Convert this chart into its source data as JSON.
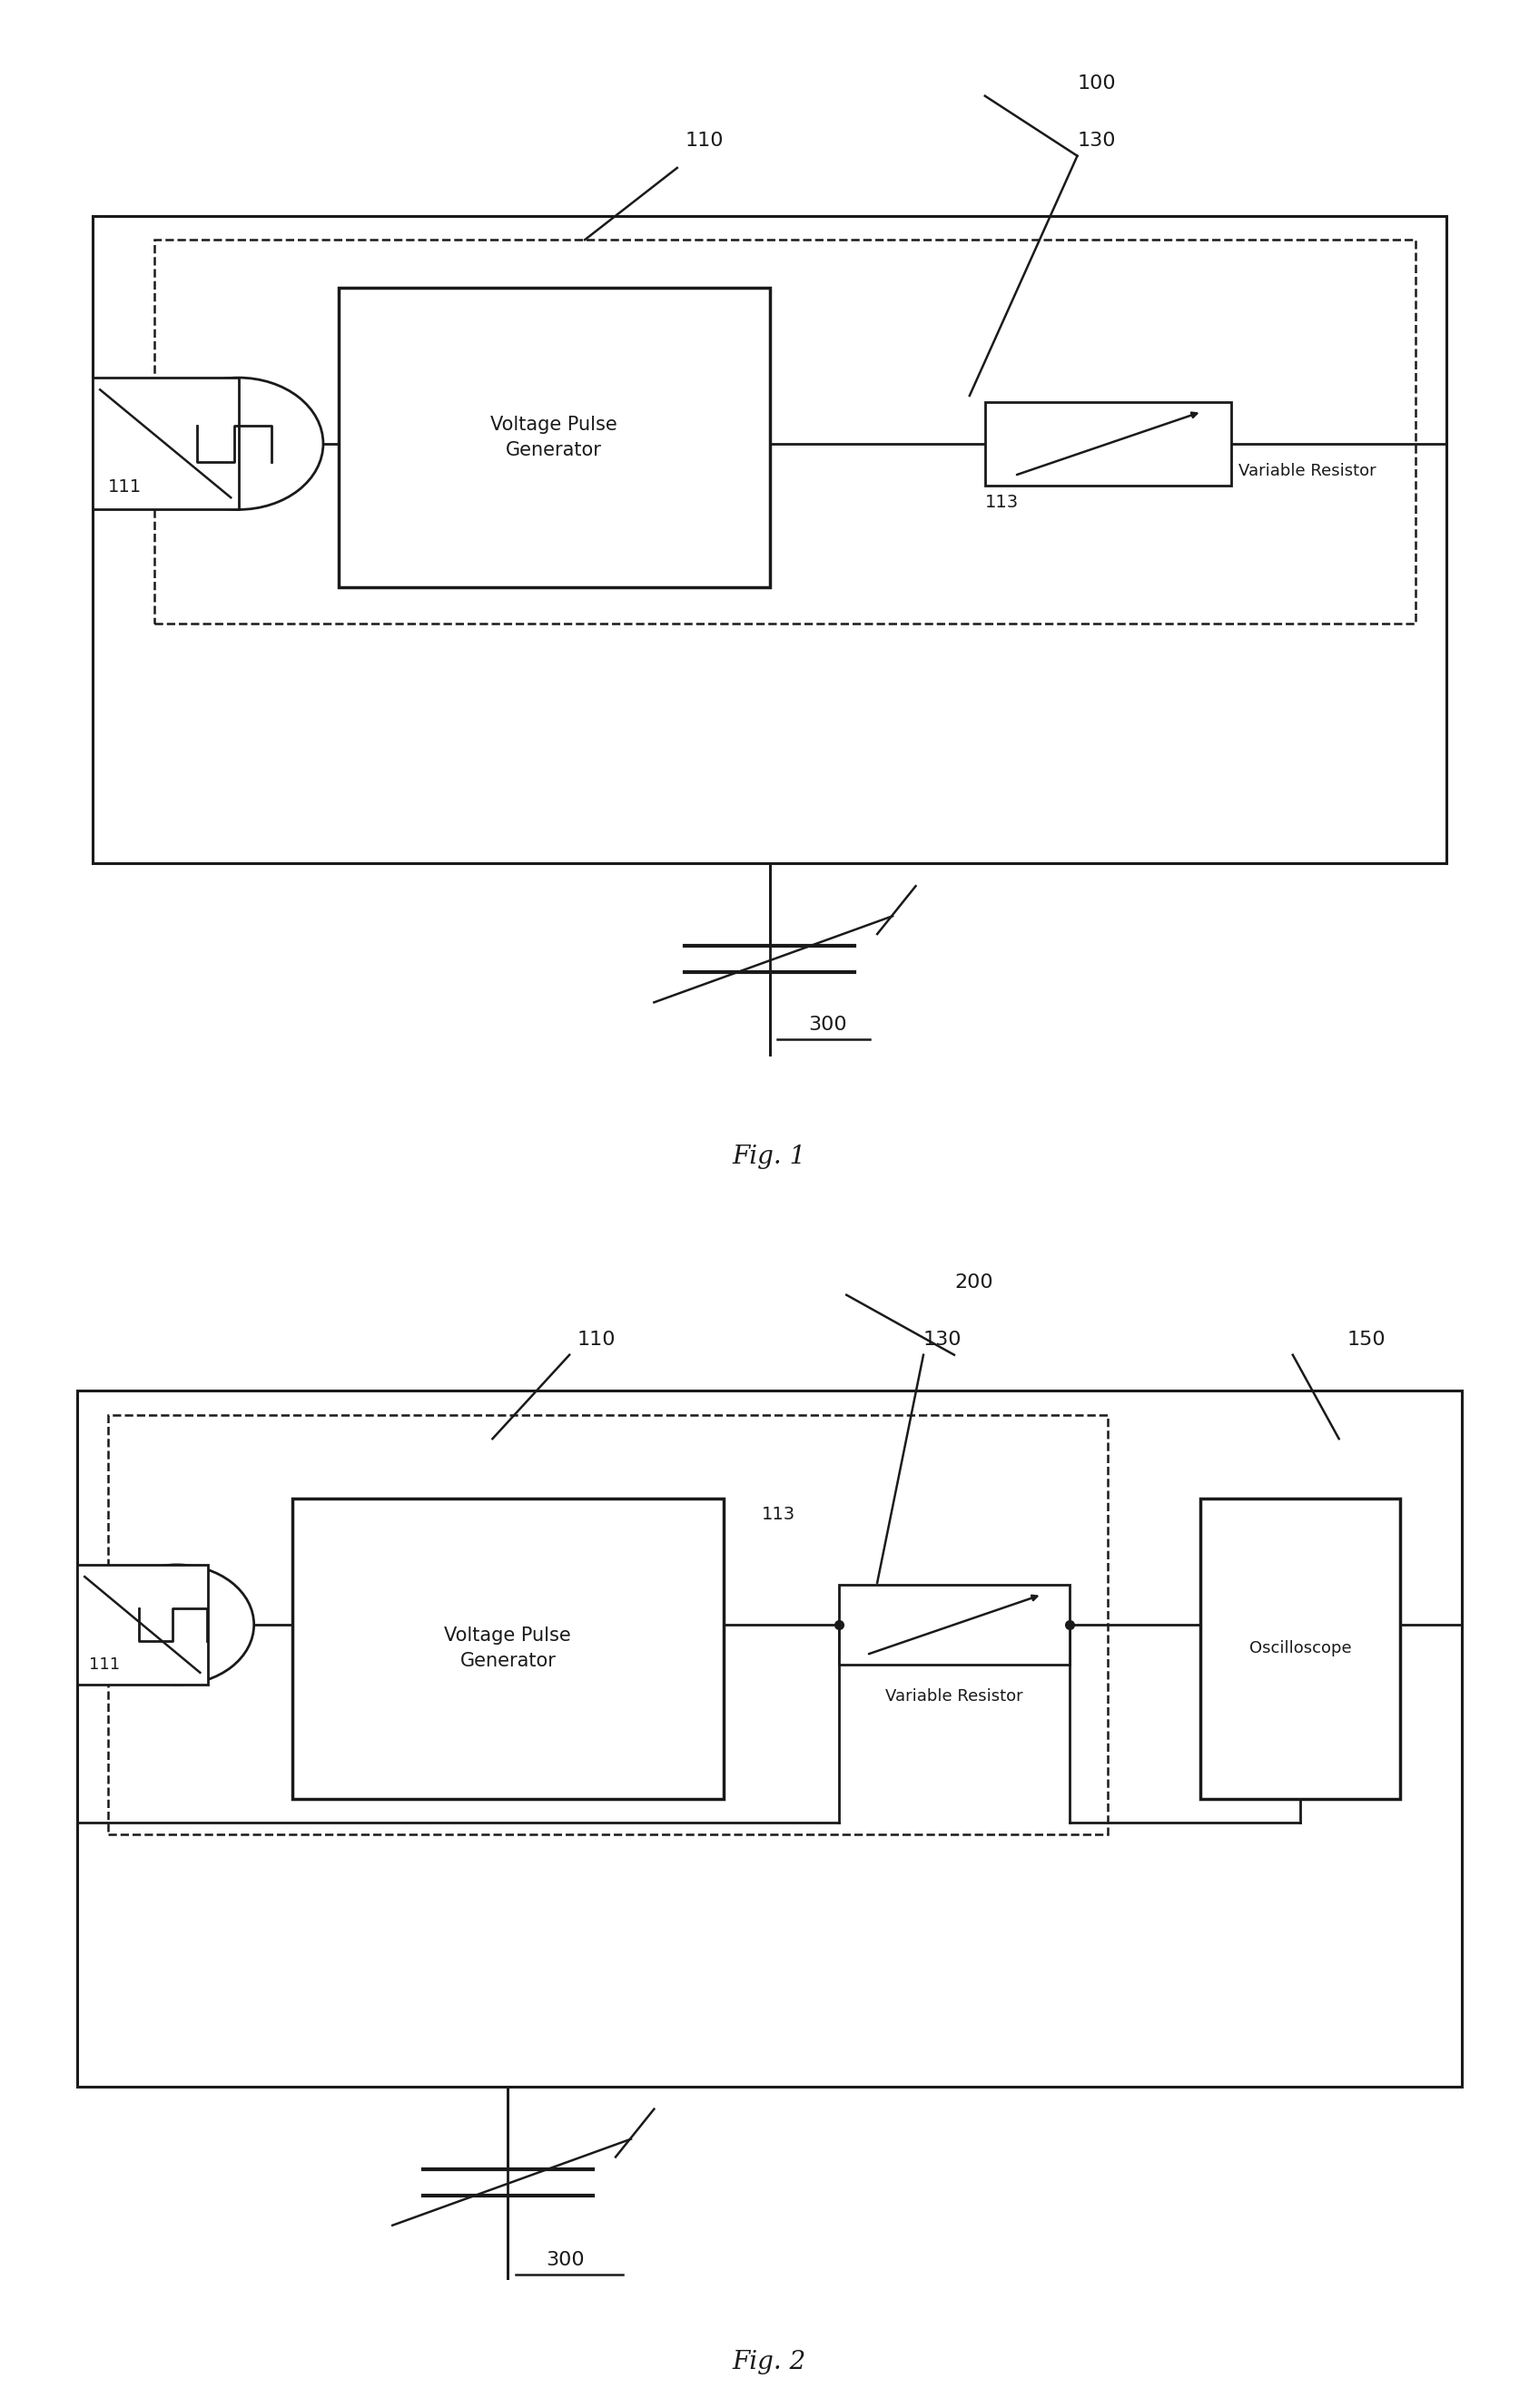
{
  "line_color": "#1a1a1a",
  "text_color": "#1a1a1a",
  "bg_color": "#ffffff",
  "fig1": {
    "label_100": "100",
    "label_110": "110",
    "label_111": "111",
    "label_113": "113",
    "label_130": "130",
    "label_300": "300",
    "fig_label": "Fig. 1",
    "vpg_text": "Voltage Pulse\nGenerator",
    "var_res_text": "Variable Resistor"
  },
  "fig2": {
    "label_200": "200",
    "label_110": "110",
    "label_111": "111",
    "label_113": "113",
    "label_130": "130",
    "label_150": "150",
    "label_300": "300",
    "fig_label": "Fig. 2",
    "vpg_text": "Voltage Pulse\nGenerator",
    "var_res_text": "Variable Resistor",
    "osc_text": "Oscilloscope"
  }
}
